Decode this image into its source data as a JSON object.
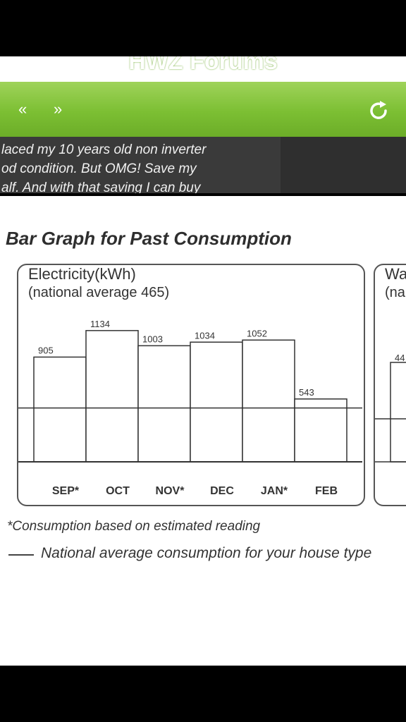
{
  "app": {
    "title": "HWZ Forums"
  },
  "nav": {
    "back_icon": "«",
    "forward_icon": "»"
  },
  "post": {
    "lines": [
      "laced my 10 years old non inverter",
      "od condition. But OMG! Save my",
      "alf. And with that saving I can buy"
    ]
  },
  "document": {
    "heading": "Bar Graph for Past Consumption",
    "footnote": "*Consumption based on estimated reading",
    "legend_label": "National average consumption for your house type",
    "water_panel": {
      "title": "Wa",
      "subtitle": "(na",
      "value_label": "44"
    }
  },
  "chart_data": {
    "type": "bar",
    "title": "Electricity(kWh)",
    "subtitle": "(national average 465)",
    "categories": [
      "SEP*",
      "OCT",
      "NOV*",
      "DEC",
      "JAN*",
      "FEB"
    ],
    "values": [
      905,
      1134,
      1003,
      1034,
      1052,
      543
    ],
    "reference_line": {
      "value": 465
    },
    "ylim": [
      0,
      1200
    ]
  }
}
